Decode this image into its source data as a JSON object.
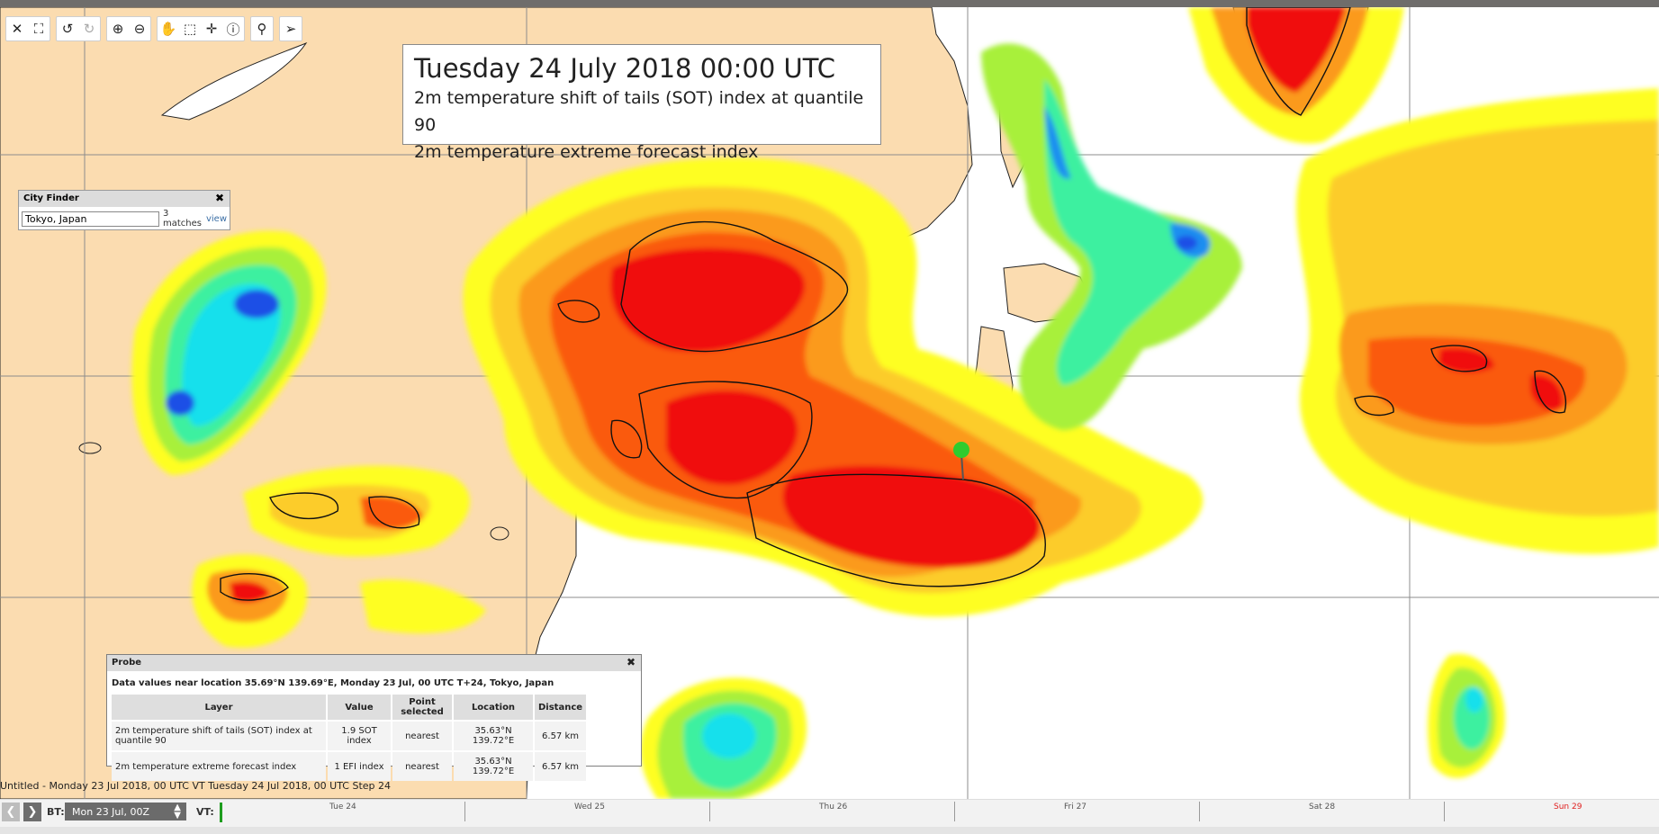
{
  "toolbar": {
    "groups": [
      [
        "close-icon",
        "fullscreen-icon"
      ],
      [
        "undo-icon",
        "redo-icon"
      ],
      [
        "zoom-in-icon",
        "zoom-out-icon"
      ],
      [
        "pan-hand-icon",
        "select-box-icon",
        "crosshair-icon",
        "info-icon"
      ],
      [
        "marker-pin-icon"
      ],
      [
        "send-arrow-icon"
      ]
    ]
  },
  "title": {
    "line1": "Tuesday 24 July 2018 00:00 UTC",
    "line2": "2m temperature shift of tails (SOT) index at quantile 90",
    "line3": "2m temperature extreme forecast index"
  },
  "city_finder": {
    "header": "City Finder",
    "input_value": "Tokyo, Japan",
    "matches": "3 matches",
    "view_link": "view"
  },
  "probe": {
    "header": "Probe",
    "info": "Data values near location 35.69°N 139.69°E, Monday 23 Jul, 00 UTC T+24, Tokyo, Japan",
    "columns": [
      "Layer",
      "Value",
      "Point selected",
      "Location",
      "Distance"
    ],
    "rows": [
      [
        "2m temperature shift of tails (SOT) index at quantile 90",
        "1.9 SOT index",
        "nearest",
        "35.63°N 139.72°E",
        "6.57 km"
      ],
      [
        "2m temperature extreme forecast index",
        "1 EFI index",
        "nearest",
        "35.63°N 139.72°E",
        "6.57 km"
      ]
    ]
  },
  "status_text": "Untitled - Monday 23 Jul 2018, 00 UTC VT Tuesday 24 Jul 2018, 00 UTC Step 24",
  "timeline": {
    "bt_label": "BT:",
    "bt_value": "Mon 23 Jul, 00Z",
    "vt_label": "VT:",
    "days": [
      {
        "label": "Tue 24",
        "color": "#555555"
      },
      {
        "label": "Wed 25",
        "color": "#555555"
      },
      {
        "label": "Thu 26",
        "color": "#555555"
      },
      {
        "label": "Fri 27",
        "color": "#555555"
      },
      {
        "label": "Sat 28",
        "color": "#555555"
      },
      {
        "label": "Sun 29",
        "color": "#e02020"
      }
    ]
  },
  "colors": {
    "land": "#fbdcb0",
    "sea": "#ffffff",
    "grid": "#8c8c8c",
    "efi_red": "#f01010",
    "efi_orange_red": "#fa5a0f",
    "efi_orange": "#fb9a1c",
    "efi_light_orange": "#fccc2a",
    "efi_yellow": "#fefe20",
    "cool_lime": "#a8f03a",
    "cool_green": "#3cf0a0",
    "cool_cyan": "#19e0ec",
    "cool_blue": "#1e8ef0",
    "cool_deep_blue": "#1f4fe6",
    "marker_green": "#2ecc2e"
  }
}
